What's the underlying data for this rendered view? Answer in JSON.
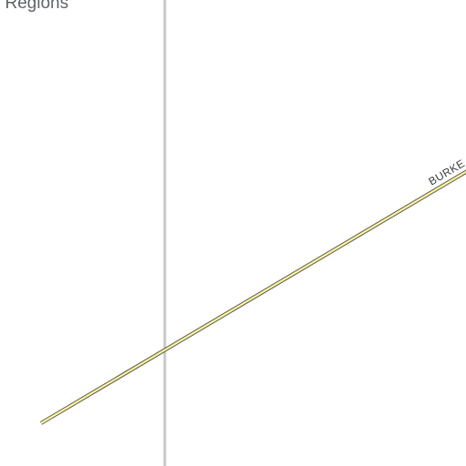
{
  "map": {
    "region_label": "l Regions",
    "road_label": "BURKE"
  },
  "colors": {
    "background": "#ffffff",
    "boundary_line": "#c8c8c8",
    "road_fill": "#fdf3a3",
    "road_casing": "#5a5a4a",
    "label_text": "#5f6368"
  }
}
